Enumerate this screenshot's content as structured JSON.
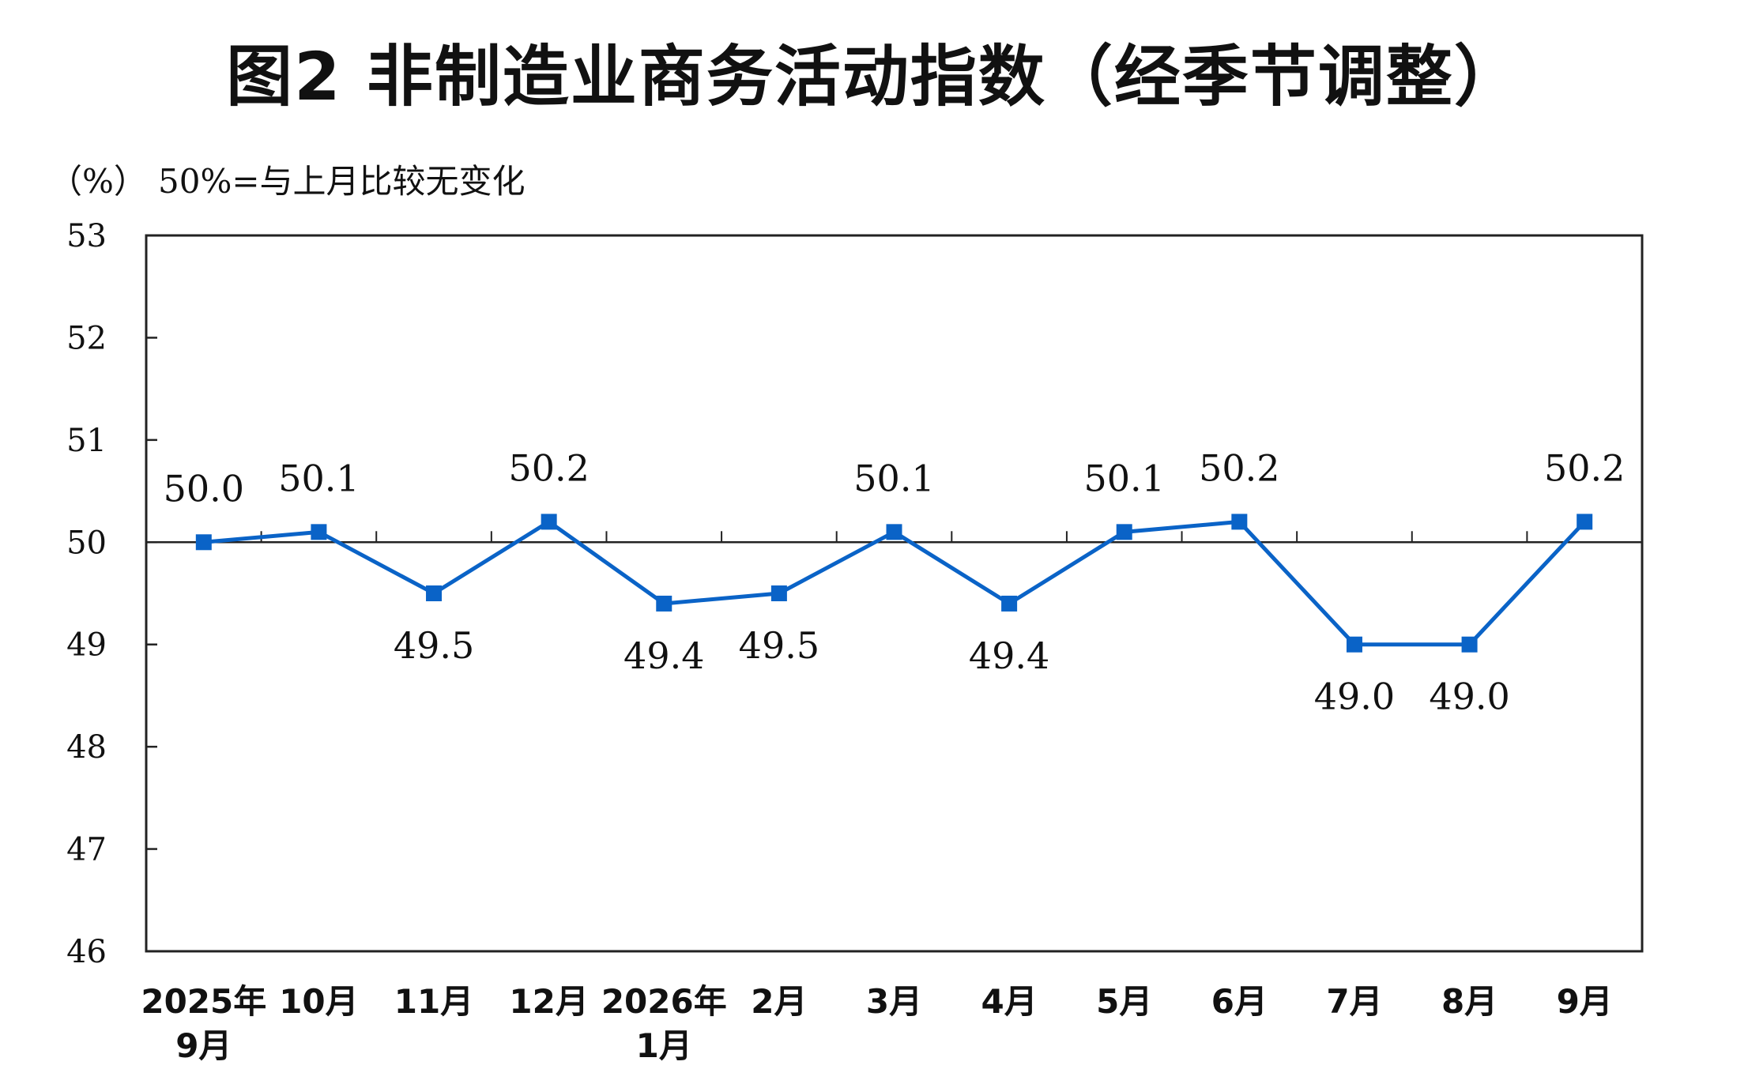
{
  "chart_data": {
    "type": "line",
    "title": "图2 非制造业商务活动指数（经季节调整）",
    "ylabel": "（%）",
    "note": "50%=与上月比较无变化",
    "ylim": [
      46,
      53
    ],
    "yticks": [
      46,
      47,
      48,
      49,
      50,
      51,
      52,
      53
    ],
    "reference_line": 50,
    "categories": [
      [
        "2025年",
        "9月"
      ],
      [
        "10月"
      ],
      [
        "11月"
      ],
      [
        "12月"
      ],
      [
        "2026年",
        "1月"
      ],
      [
        "2月"
      ],
      [
        "3月"
      ],
      [
        "4月"
      ],
      [
        "5月"
      ],
      [
        "6月"
      ],
      [
        "7月"
      ],
      [
        "8月"
      ],
      [
        "9月"
      ]
    ],
    "series": [
      {
        "values": [
          50.0,
          50.1,
          49.5,
          50.2,
          49.4,
          49.5,
          50.1,
          49.4,
          50.1,
          50.2,
          49.0,
          49.0,
          50.2
        ],
        "labels": [
          "50.0",
          "50.1",
          "49.5",
          "50.2",
          "49.4",
          "49.5",
          "50.1",
          "49.4",
          "50.1",
          "50.2",
          "49.0",
          "49.0",
          "50.2"
        ],
        "color": "#0a63c7"
      }
    ],
    "grid": false,
    "legend": "none"
  }
}
